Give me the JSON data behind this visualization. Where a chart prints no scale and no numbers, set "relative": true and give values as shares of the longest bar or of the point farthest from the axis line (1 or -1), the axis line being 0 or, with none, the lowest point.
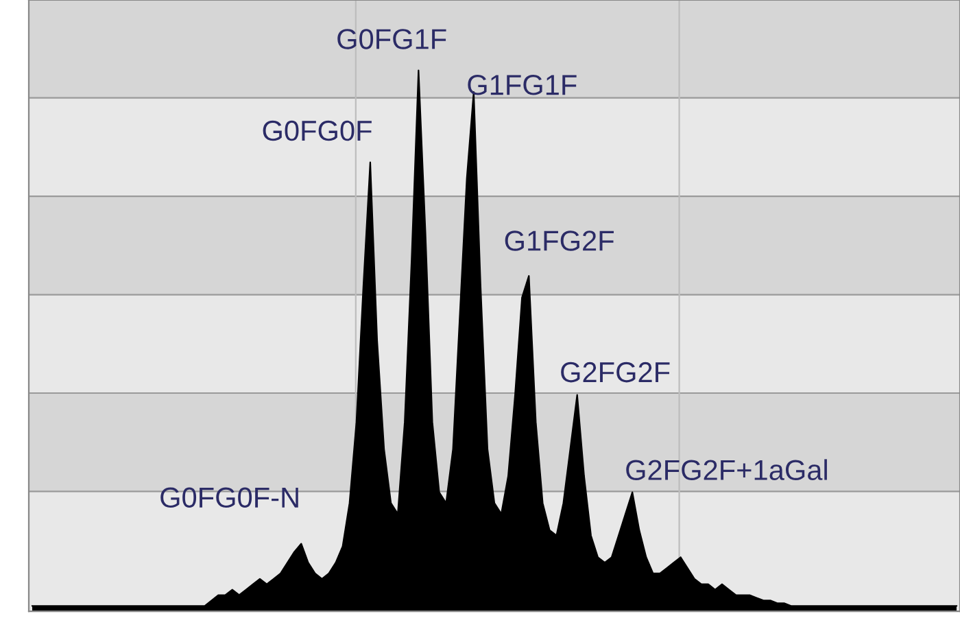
{
  "chart_data": {
    "type": "area",
    "relative": true,
    "grid": true,
    "categories": [
      null,
      null,
      null,
      null,
      null,
      null,
      null,
      null,
      null,
      null,
      null,
      null,
      null,
      null,
      null,
      null,
      null,
      null,
      null,
      null,
      null,
      null,
      null,
      null,
      null,
      null,
      null,
      null,
      null,
      null,
      null,
      null,
      null,
      null,
      null,
      null,
      null,
      null,
      null,
      null,
      null,
      null,
      null,
      null,
      null,
      null,
      null,
      null,
      null,
      null,
      null,
      null,
      null,
      null,
      null,
      null,
      null,
      null,
      null,
      null,
      null,
      null,
      null,
      null,
      null,
      null,
      null,
      null,
      null,
      null,
      null,
      null,
      null,
      null,
      null,
      null,
      null,
      null,
      null,
      null,
      null,
      null,
      null,
      null,
      null,
      null,
      null,
      null,
      null,
      null,
      null,
      null,
      null,
      null,
      null,
      null,
      null,
      null,
      null,
      null,
      null,
      null,
      null,
      null,
      null,
      null,
      null,
      null,
      null,
      null,
      null,
      null,
      null,
      null,
      null,
      null,
      null,
      null,
      null,
      null,
      null,
      null,
      null,
      null,
      null,
      null,
      null,
      null,
      null,
      null,
      null,
      null,
      null,
      null,
      null
    ],
    "series": [
      {
        "color": "#000000",
        "values": [
          0.01,
          0.01,
          0.01,
          0.01,
          0.01,
          0.01,
          0.01,
          0.01,
          0.01,
          0.01,
          0.01,
          0.01,
          0.01,
          0.01,
          0.01,
          0.01,
          0.01,
          0.01,
          0.01,
          0.01,
          0.01,
          0.01,
          0.01,
          0.01,
          0.01,
          0.01,
          0.02,
          0.03,
          0.03,
          0.04,
          0.03,
          0.04,
          0.05,
          0.06,
          0.05,
          0.06,
          0.07,
          0.09,
          0.11,
          0.125,
          0.09,
          0.07,
          0.06,
          0.07,
          0.09,
          0.12,
          0.2,
          0.35,
          0.6,
          0.83,
          0.5,
          0.3,
          0.2,
          0.18,
          0.35,
          0.65,
          1.0,
          0.7,
          0.35,
          0.22,
          0.2,
          0.3,
          0.55,
          0.8,
          0.96,
          0.6,
          0.3,
          0.2,
          0.18,
          0.25,
          0.4,
          0.58,
          0.62,
          0.35,
          0.2,
          0.15,
          0.14,
          0.2,
          0.3,
          0.4,
          0.25,
          0.14,
          0.1,
          0.09,
          0.1,
          0.14,
          0.18,
          0.22,
          0.15,
          0.1,
          0.07,
          0.07,
          0.08,
          0.09,
          0.1,
          0.08,
          0.06,
          0.05,
          0.05,
          0.04,
          0.05,
          0.04,
          0.03,
          0.03,
          0.03,
          0.025,
          0.02,
          0.02,
          0.015,
          0.015,
          0.01,
          0.01,
          0.01,
          0.01,
          0.01,
          0.01,
          0.01,
          0.01,
          0.01,
          0.01,
          0.01,
          0.01,
          0.01,
          0.01,
          0.01,
          0.01,
          0.01,
          0.01,
          0.01,
          0.01,
          0.01,
          0.01,
          0.01,
          0.01,
          0.01
        ]
      }
    ],
    "annotations": [
      "G0FG0F-N",
      "G0FG0F",
      "G0FG1F",
      "G1FG1F",
      "G1FG2F",
      "G2FG2F",
      "G2FG2F+1aGal"
    ]
  }
}
